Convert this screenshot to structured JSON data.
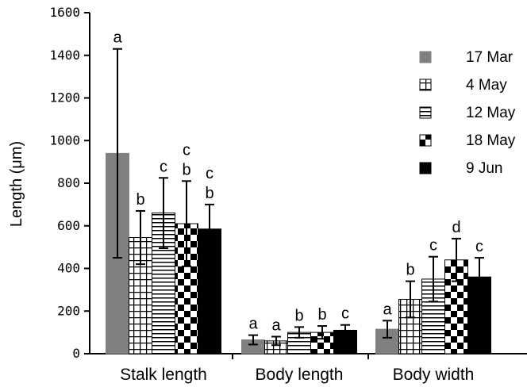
{
  "chart_data": {
    "type": "bar",
    "ylabel": "Length (μm)",
    "ylim": [
      0,
      1600
    ],
    "yticks": [
      "0",
      "200",
      "400",
      "600",
      "800",
      "1000",
      "1200",
      "1400",
      "1600"
    ],
    "categories": [
      "Stalk length",
      "Body length",
      "Body width"
    ],
    "legend_position": "right",
    "series": [
      {
        "name": "17 Mar",
        "pattern": "solid-gray",
        "color": "#808080",
        "values": [
          940,
          65,
          115
        ],
        "errors": [
          490,
          22,
          40
        ],
        "letters": [
          "a",
          "a",
          "a"
        ]
      },
      {
        "name": "4 May",
        "pattern": "grid",
        "color": "#000000",
        "values": [
          545,
          60,
          255
        ],
        "errors": [
          125,
          20,
          85
        ],
        "letters": [
          "b",
          "a",
          "b"
        ]
      },
      {
        "name": "12 May",
        "pattern": "horizontal-lines",
        "color": "#000000",
        "values": [
          660,
          100,
          350
        ],
        "errors": [
          165,
          25,
          105
        ],
        "letters": [
          "c",
          "b",
          "c"
        ]
      },
      {
        "name": "18 May",
        "pattern": "checker",
        "color": "#000000",
        "values": [
          610,
          100,
          440
        ],
        "errors": [
          200,
          30,
          100
        ],
        "letters": [
          "c\nb",
          "b",
          "d"
        ]
      },
      {
        "name": "9 Jun",
        "pattern": "solid-black",
        "color": "#000000",
        "values": [
          585,
          110,
          360
        ],
        "errors": [
          115,
          25,
          90
        ],
        "letters": [
          "c\nb",
          "c",
          "c"
        ]
      }
    ]
  }
}
